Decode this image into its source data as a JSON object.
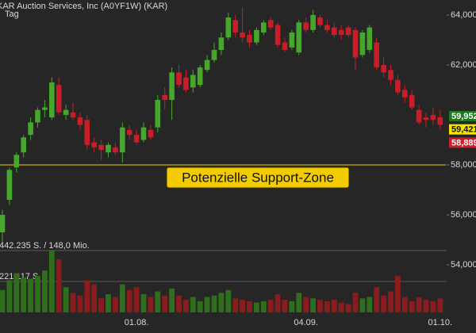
{
  "chart_data": {
    "type": "candlestick",
    "title": "KAR Auction Services, Inc (A0YF1W) (KAR)",
    "subtitle": "Tag",
    "categories": [
      null,
      null,
      null,
      null,
      null,
      null,
      null,
      null,
      null,
      null,
      null,
      null,
      null,
      null,
      null,
      null,
      null,
      null,
      null,
      "01.08.",
      null,
      null,
      null,
      null,
      null,
      null,
      null,
      null,
      null,
      null,
      null,
      null,
      null,
      null,
      null,
      null,
      null,
      null,
      null,
      null,
      null,
      null,
      null,
      "04.09.",
      null,
      null,
      null,
      null,
      null,
      null,
      null,
      null,
      null,
      null,
      null,
      null,
      null,
      null,
      null,
      null,
      null,
      null,
      "01.10."
    ],
    "open": [
      55.3,
      56.6,
      57.9,
      58.5,
      59.2,
      59.7,
      60.2,
      59.9,
      61.2,
      60.0,
      60.1,
      59.9,
      59.8,
      58.9,
      58.8,
      58.5,
      58.7,
      58.5,
      59.4,
      59.2,
      59.0,
      59.4,
      59.5,
      60.8,
      60.6,
      61.7,
      61.5,
      61.1,
      61.2,
      61.8,
      62.2,
      62.6,
      63.1,
      63.8,
      63.3,
      63.2,
      62.9,
      63.3,
      63.8,
      63.6,
      62.9,
      62.7,
      62.5,
      63.7,
      63.4,
      63.9,
      63.6,
      63.5,
      63.4,
      63.5,
      63.4,
      62.4,
      62.6,
      62.9,
      62.0,
      61.8,
      61.4,
      61.0,
      60.8,
      60.2,
      59.9,
      60.0,
      59.9
    ],
    "high": [
      56.2,
      57.9,
      58.5,
      59.2,
      59.9,
      60.3,
      60.6,
      61.5,
      61.5,
      60.4,
      60.5,
      60.1,
      60.0,
      59.1,
      59.0,
      58.9,
      58.9,
      59.7,
      59.6,
      59.4,
      59.7,
      59.6,
      60.8,
      61.1,
      61.9,
      62.0,
      61.8,
      61.8,
      62.0,
      62.4,
      62.9,
      63.3,
      64.1,
      64.0,
      64.3,
      63.4,
      63.5,
      63.8,
      63.9,
      63.7,
      63.1,
      63.4,
      63.8,
      63.9,
      64.2,
      64.0,
      63.8,
      63.7,
      63.6,
      63.6,
      63.5,
      63.4,
      63.6,
      63.1,
      62.3,
      62.0,
      61.6,
      61.2,
      61.0,
      60.4,
      60.1,
      60.3,
      60.2
    ],
    "low": [
      54.9,
      56.4,
      57.7,
      58.3,
      59.0,
      59.5,
      59.9,
      59.8,
      60.0,
      59.8,
      59.8,
      59.4,
      58.6,
      58.5,
      58.2,
      58.3,
      58.4,
      58.1,
      59.0,
      58.8,
      58.9,
      59.0,
      59.3,
      60.2,
      59.8,
      61.1,
      60.9,
      60.9,
      61.1,
      61.7,
      62.1,
      62.4,
      63.0,
      63.1,
      62.9,
      62.7,
      62.8,
      63.2,
      63.4,
      62.7,
      62.5,
      62.6,
      62.4,
      63.3,
      63.3,
      63.5,
      63.3,
      63.1,
      63.0,
      63.1,
      61.8,
      62.3,
      62.5,
      61.8,
      61.5,
      61.2,
      60.8,
      60.5,
      60.2,
      59.6,
      59.5,
      59.6,
      59.4
    ],
    "close": [
      56.0,
      57.8,
      58.4,
      59.1,
      59.7,
      60.2,
      60.3,
      61.3,
      60.1,
      60.2,
      59.9,
      59.6,
      58.8,
      58.7,
      58.6,
      58.8,
      58.5,
      59.5,
      59.2,
      58.9,
      59.5,
      59.1,
      60.6,
      60.6,
      61.7,
      61.2,
      61.0,
      61.6,
      61.9,
      62.2,
      62.6,
      63.1,
      63.9,
      63.3,
      63.1,
      62.9,
      63.4,
      63.7,
      63.5,
      62.8,
      62.6,
      63.3,
      63.7,
      63.4,
      64.0,
      63.6,
      63.4,
      63.2,
      63.2,
      63.2,
      62.3,
      63.3,
      63.5,
      61.9,
      61.7,
      61.4,
      60.9,
      60.7,
      60.3,
      59.7,
      59.8,
      59.8,
      59.6
    ],
    "volume": [
      160000,
      230000,
      280000,
      250000,
      240000,
      260000,
      300000,
      442235,
      380000,
      180000,
      140000,
      120000,
      230000,
      200000,
      100000,
      130000,
      110000,
      200000,
      160000,
      180000,
      130000,
      110000,
      150000,
      120000,
      170000,
      120000,
      90000,
      110000,
      80000,
      110000,
      120000,
      140000,
      160000,
      100000,
      90000,
      80000,
      70000,
      80000,
      90000,
      130000,
      90000,
      80000,
      140000,
      110000,
      100000,
      90000,
      80000,
      90000,
      70000,
      60000,
      140000,
      100000,
      110000,
      180000,
      120000,
      150000,
      260000,
      110000,
      80000,
      110000,
      90000,
      80000,
      100000
    ],
    "up_color": "#46a82a",
    "down_color": "#c81e28",
    "volume_up_color": "#2f6e1c",
    "volume_down_color": "#8a1c1e",
    "ylim": [
      52,
      64.6
    ],
    "yticks": [
      {
        "value": 54,
        "label": "54,000"
      },
      {
        "value": 56,
        "label": "56,000"
      },
      {
        "value": 58,
        "label": "58,000"
      },
      {
        "value": 62,
        "label": "62,000"
      },
      {
        "value": 64,
        "label": "64,000"
      }
    ],
    "volume_lim": [
      0,
      442235
    ],
    "volume_ticks": [
      {
        "value": 442235,
        "label": "442.235 S. / 148,0 Mio."
      },
      {
        "value": 221117,
        "label": "221.117 S."
      }
    ],
    "support": {
      "value": 58,
      "label": "Potenzielle Support-Zone",
      "color": "#f2cc00"
    },
    "price_tags": [
      {
        "value": 59.952,
        "label": "59,952",
        "color": "#1e7a1e",
        "text_color": "#ffffff"
      },
      {
        "value": 59.421,
        "label": "59,421",
        "color": "#f2e600",
        "text_color": "#111111"
      },
      {
        "value": 58.889,
        "label": "58,889",
        "color": "#d01c28",
        "text_color": "#ffffff"
      }
    ],
    "grid": false
  }
}
